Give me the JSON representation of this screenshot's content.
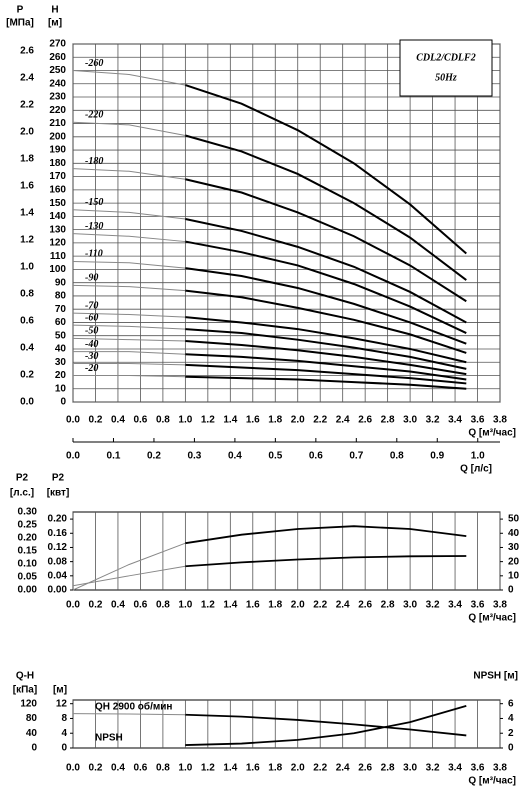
{
  "chart_data": [
    {
      "type": "line",
      "text_box": [
        "CDL2/CDLF2",
        "50Hz"
      ],
      "y_label": [
        "H",
        "[м]"
      ],
      "y3label": [
        "P",
        "[МПа]"
      ],
      "x_label": "Q [м³/час]",
      "x2label": "Q [л/с]",
      "x": [
        0,
        0.5,
        1,
        1.5,
        2,
        2.5,
        3,
        3.5
      ],
      "xlim": [
        0,
        3.8
      ],
      "xticks": [
        {
          "value": 0,
          "label": "0.0"
        },
        0.2,
        0.4,
        0.6,
        0.8,
        {
          "value": 1,
          "label": "1.0"
        },
        1.2,
        1.4,
        1.6,
        1.8,
        {
          "value": 2,
          "label": "2.0"
        },
        2.2,
        2.4,
        2.6,
        2.8,
        {
          "value": 3,
          "label": "3.0"
        },
        3.2,
        3.4,
        3.6,
        3.8
      ],
      "x2lim": [
        0,
        1.055
      ],
      "x2ticks": [
        {
          "value": 0,
          "label": "0.0"
        },
        0.1,
        0.2,
        0.3,
        0.4,
        0.5,
        0.6,
        0.7,
        0.8,
        0.9,
        {
          "value": 1,
          "label": "1.0"
        }
      ],
      "ylim": [
        0,
        270
      ],
      "yticks": [
        0,
        10,
        20,
        30,
        40,
        50,
        60,
        70,
        80,
        90,
        100,
        110,
        120,
        130,
        140,
        150,
        160,
        170,
        180,
        190,
        200,
        210,
        220,
        230,
        240,
        250,
        260,
        270
      ],
      "y3lim": [
        0,
        2.65
      ],
      "y3ticks": [
        {
          "value": 0,
          "label": "0.0"
        },
        0.2,
        0.4,
        0.6,
        0.8,
        {
          "value": 1,
          "label": "1.0"
        },
        1.2,
        1.4,
        1.6,
        1.8,
        {
          "value": 2,
          "label": "2.0"
        },
        2.2,
        2.4,
        2.6
      ],
      "grid": "both",
      "bold_from_x": 1,
      "thin_color": "#888888",
      "series": [
        {
          "name": "-260",
          "color": "#000000",
          "values": [
            250,
            247,
            239,
            225,
            205,
            180,
            149,
            112
          ]
        },
        {
          "name": "-220",
          "color": "#000000",
          "values": [
            211,
            209,
            201,
            189,
            172,
            150,
            124,
            92
          ]
        },
        {
          "name": "-180",
          "color": "#000000",
          "values": [
            176,
            174,
            168,
            158,
            143,
            125,
            103,
            76
          ]
        },
        {
          "name": "-150",
          "color": "#000000",
          "values": [
            145,
            143,
            138,
            129,
            117,
            102,
            83,
            60
          ]
        },
        {
          "name": "-130",
          "color": "#000000",
          "values": [
            127,
            125,
            121,
            113,
            103,
            89,
            72,
            52
          ]
        },
        {
          "name": "-110",
          "color": "#000000",
          "values": [
            106,
            105,
            101,
            95,
            86,
            74,
            60,
            44
          ]
        },
        {
          "name": "-90",
          "color": "#000000",
          "values": [
            88,
            87,
            84,
            79,
            71,
            62,
            51,
            37
          ]
        },
        {
          "name": "-70",
          "color": "#000000",
          "values": [
            67,
            66,
            64,
            60,
            55,
            48,
            40,
            30
          ]
        },
        {
          "name": "-60",
          "color": "#000000",
          "values": [
            58,
            57,
            55,
            52,
            47,
            41,
            34,
            25
          ]
        },
        {
          "name": "-50",
          "color": "#000000",
          "values": [
            48,
            47,
            46,
            43,
            39,
            34,
            28,
            21
          ]
        },
        {
          "name": "-40",
          "color": "#000000",
          "values": [
            38,
            38,
            36,
            34,
            31,
            27,
            23,
            17
          ]
        },
        {
          "name": "-30",
          "color": "#000000",
          "values": [
            29,
            29,
            28,
            26,
            24,
            21,
            18,
            14
          ]
        },
        {
          "name": "-20",
          "color": "#000000",
          "values": [
            20,
            20,
            19,
            18,
            17,
            15,
            13,
            10
          ]
        }
      ]
    },
    {
      "type": "line",
      "y_label": [
        "P2",
        "[квт]"
      ],
      "y3label": [
        "P2",
        "[л.с.]"
      ],
      "x_label": "Q [м³/час]",
      "x": [
        0,
        0.5,
        1,
        1.5,
        2,
        2.5,
        3,
        3.5
      ],
      "xlim": [
        0,
        3.8
      ],
      "xticks": [
        {
          "value": 0,
          "label": "0.0"
        },
        0.2,
        0.4,
        0.6,
        0.8,
        {
          "value": 1,
          "label": "1.0"
        },
        1.2,
        1.4,
        1.6,
        1.8,
        {
          "value": 2,
          "label": "2.0"
        },
        2.2,
        2.4,
        2.6,
        2.8,
        {
          "value": 3,
          "label": "3.0"
        },
        3.2,
        3.4,
        3.6,
        3.8
      ],
      "ylim": [
        0,
        0.22
      ],
      "yticks": [
        {
          "value": 0,
          "label": "0.00"
        },
        0.04,
        0.08,
        0.12,
        0.16,
        {
          "value": 0.2,
          "label": "0.20"
        }
      ],
      "y3lim": [
        0,
        0.3
      ],
      "y3ticks": [
        {
          "value": 0,
          "label": "0.00"
        },
        0.05,
        {
          "value": 0.1,
          "label": "0.10"
        },
        0.15,
        {
          "value": 0.2,
          "label": "0.20"
        },
        0.25,
        {
          "value": 0.3,
          "label": "0.30"
        }
      ],
      "y2lim": [
        0,
        55
      ],
      "y2ticks": [
        0,
        10,
        20,
        30,
        40,
        50
      ],
      "grid": "x",
      "bold_from_x": 1,
      "thin_color": "#888888",
      "series": [
        {
          "color": "#000000",
          "axis": "y2",
          "values": [
            0,
            18,
            33,
            39,
            43,
            45,
            43,
            38
          ]
        },
        {
          "color": "#000000",
          "values": [
            0.012,
            0.04,
            0.067,
            0.078,
            0.086,
            0.092,
            0.095,
            0.096
          ]
        }
      ]
    },
    {
      "type": "line",
      "y_label": [
        "[м]"
      ],
      "y3label": [
        "Q-H",
        "[кПа]"
      ],
      "y2label": "NPSH [м]",
      "x_label": "Q [м³/час]",
      "x": [
        0,
        0.5,
        1,
        1.5,
        2,
        2.5,
        3,
        3.5
      ],
      "xlim": [
        0,
        3.8
      ],
      "xticks": [
        {
          "value": 0,
          "label": "0.0"
        },
        0.2,
        0.4,
        0.6,
        0.8,
        {
          "value": 1,
          "label": "1.0"
        },
        1.2,
        1.4,
        1.6,
        1.8,
        {
          "value": 2,
          "label": "2.0"
        },
        2.2,
        2.4,
        2.6,
        2.8,
        {
          "value": 3,
          "label": "3.0"
        },
        3.2,
        3.4,
        3.6,
        3.8
      ],
      "ylim": [
        0,
        13
      ],
      "yticks": [
        0,
        4,
        8,
        12
      ],
      "y3lim": [
        0,
        130
      ],
      "y3ticks": [
        0,
        40,
        80,
        120
      ],
      "y2lim": [
        0,
        6.5
      ],
      "y2ticks": [
        0,
        2,
        4,
        6
      ],
      "grid": "x",
      "bold_from_x": 1,
      "thin_color": "#888888",
      "series": [
        {
          "name": "QH 2900 об/мин",
          "color": "#000000",
          "values": [
            9.3,
            9.2,
            9,
            8.5,
            7.6,
            6.4,
            5,
            3.4
          ]
        },
        {
          "name": "NPSH",
          "color": "#000000",
          "axis": "y2",
          "values": [
            null,
            null,
            0.4,
            0.6,
            1.1,
            2,
            3.5,
            5.7
          ]
        }
      ]
    }
  ]
}
